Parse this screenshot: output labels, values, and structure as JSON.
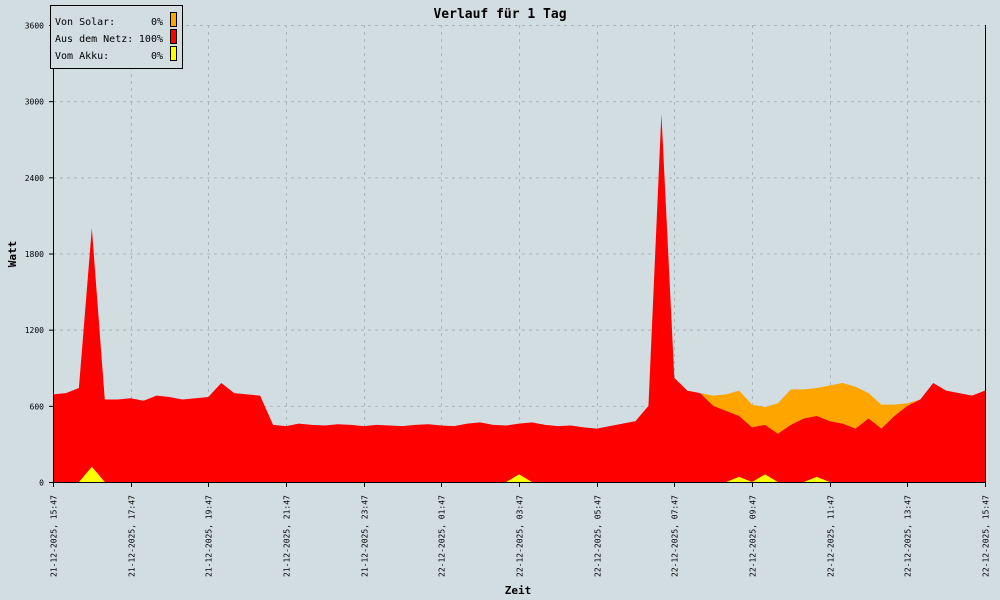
{
  "chart_data": {
    "type": "area",
    "stacked": true,
    "title": "Verlauf für 1 Tag",
    "xlabel": "Zeit",
    "ylabel": "Watt",
    "ylim": [
      0,
      3600
    ],
    "yticks": [
      0,
      600,
      1200,
      1800,
      2400,
      3000,
      3600
    ],
    "xticks": [
      "21-12-2025, 15:47",
      "21-12-2025, 17:47",
      "21-12-2025, 19:47",
      "21-12-2025, 21:47",
      "21-12-2025, 23:47",
      "22-12-2025, 01:47",
      "22-12-2025, 03:47",
      "22-12-2025, 05:47",
      "22-12-2025, 07:47",
      "22-12-2025, 09:47",
      "22-12-2025, 11:47",
      "22-12-2025, 13:47",
      "22-12-2025, 15:47"
    ],
    "grid": true,
    "legend_position": "top-left",
    "legend": [
      {
        "label": "Von Solar:",
        "percent": "0%",
        "color": "#ffa500"
      },
      {
        "label": "Aus dem Netz:",
        "percent": "100%",
        "color": "#ff0000"
      },
      {
        "label": "Vom Akku:",
        "percent": "0%",
        "color": "#ffff00"
      }
    ],
    "x": [
      "21-12-2025, 15:47",
      "21-12-2025, 16:07",
      "21-12-2025, 16:27",
      "21-12-2025, 16:47",
      "21-12-2025, 17:07",
      "21-12-2025, 17:27",
      "21-12-2025, 17:47",
      "21-12-2025, 18:07",
      "21-12-2025, 18:27",
      "21-12-2025, 18:47",
      "21-12-2025, 19:07",
      "21-12-2025, 19:27",
      "21-12-2025, 19:47",
      "21-12-2025, 20:07",
      "21-12-2025, 20:27",
      "21-12-2025, 20:47",
      "21-12-2025, 21:07",
      "21-12-2025, 21:27",
      "21-12-2025, 21:47",
      "21-12-2025, 22:07",
      "21-12-2025, 22:27",
      "21-12-2025, 22:47",
      "21-12-2025, 23:07",
      "21-12-2025, 23:27",
      "21-12-2025, 23:47",
      "22-12-2025, 00:07",
      "22-12-2025, 00:27",
      "22-12-2025, 00:47",
      "22-12-2025, 01:07",
      "22-12-2025, 01:27",
      "22-12-2025, 01:47",
      "22-12-2025, 02:07",
      "22-12-2025, 02:27",
      "22-12-2025, 02:47",
      "22-12-2025, 03:07",
      "22-12-2025, 03:27",
      "22-12-2025, 03:47",
      "22-12-2025, 04:07",
      "22-12-2025, 04:27",
      "22-12-2025, 04:47",
      "22-12-2025, 05:07",
      "22-12-2025, 05:27",
      "22-12-2025, 05:47",
      "22-12-2025, 06:07",
      "22-12-2025, 06:27",
      "22-12-2025, 06:47",
      "22-12-2025, 07:07",
      "22-12-2025, 07:27",
      "22-12-2025, 07:47",
      "22-12-2025, 08:07",
      "22-12-2025, 08:27",
      "22-12-2025, 08:47",
      "22-12-2025, 09:07",
      "22-12-2025, 09:27",
      "22-12-2025, 09:47",
      "22-12-2025, 10:07",
      "22-12-2025, 10:27",
      "22-12-2025, 10:47",
      "22-12-2025, 11:07",
      "22-12-2025, 11:27",
      "22-12-2025, 11:47",
      "22-12-2025, 12:07",
      "22-12-2025, 12:27",
      "22-12-2025, 12:47",
      "22-12-2025, 13:07",
      "22-12-2025, 13:27",
      "22-12-2025, 13:47",
      "22-12-2025, 14:07",
      "22-12-2025, 14:27",
      "22-12-2025, 14:47",
      "22-12-2025, 15:07",
      "22-12-2025, 15:27",
      "22-12-2025, 15:47"
    ],
    "series": [
      {
        "name": "Aus dem Netz",
        "color": "#ff0000",
        "values": [
          690,
          700,
          740,
          2000,
          650,
          650,
          660,
          640,
          680,
          670,
          650,
          660,
          670,
          780,
          700,
          690,
          680,
          450,
          440,
          460,
          450,
          445,
          455,
          450,
          440,
          450,
          445,
          440,
          450,
          455,
          445,
          440,
          460,
          470,
          450,
          445,
          460,
          470,
          450,
          440,
          445,
          430,
          420,
          440,
          460,
          480,
          600,
          2900,
          820,
          720,
          700,
          600,
          560,
          520,
          430,
          450,
          380,
          450,
          500,
          520,
          480,
          460,
          420,
          500,
          420,
          520,
          600,
          650,
          780,
          720,
          700,
          680,
          720
        ]
      },
      {
        "name": "Von Solar",
        "color": "#ffa500",
        "values": [
          0,
          0,
          0,
          0,
          0,
          0,
          0,
          0,
          0,
          0,
          0,
          0,
          0,
          0,
          0,
          0,
          0,
          0,
          0,
          0,
          0,
          0,
          0,
          0,
          0,
          0,
          0,
          0,
          0,
          0,
          0,
          0,
          0,
          0,
          0,
          0,
          0,
          0,
          0,
          0,
          0,
          0,
          0,
          0,
          0,
          0,
          0,
          0,
          0,
          0,
          0,
          80,
          130,
          200,
          180,
          140,
          240,
          280,
          230,
          220,
          280,
          320,
          330,
          200,
          190,
          90,
          20,
          0,
          0,
          0,
          0,
          0,
          0
        ]
      },
      {
        "name": "Vom Akku",
        "color": "#ffff00",
        "values": [
          0,
          0,
          0,
          120,
          0,
          0,
          0,
          0,
          0,
          0,
          0,
          0,
          0,
          0,
          0,
          0,
          0,
          0,
          0,
          0,
          0,
          0,
          0,
          0,
          0,
          0,
          0,
          0,
          0,
          0,
          0,
          0,
          0,
          0,
          0,
          0,
          60,
          0,
          0,
          0,
          0,
          0,
          0,
          0,
          0,
          0,
          0,
          0,
          0,
          0,
          0,
          0,
          0,
          40,
          0,
          60,
          0,
          0,
          0,
          40,
          0,
          0,
          0,
          0,
          0,
          0,
          0,
          0,
          0,
          0,
          0,
          0,
          0
        ]
      }
    ]
  }
}
